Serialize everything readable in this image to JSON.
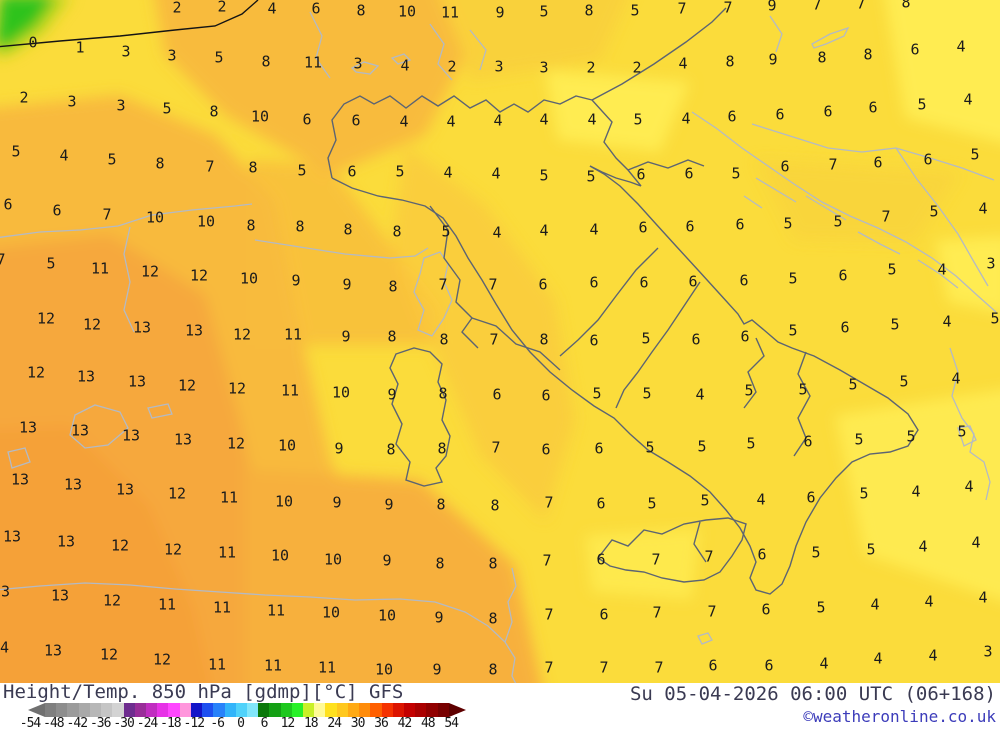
{
  "legend": {
    "title": "Height/Temp. 850 hPa [gdmp][°C] GFS",
    "datetime": "Su 05-04-2026 06:00 UTC (06+168)",
    "copyright": "©weatheronline.co.uk",
    "ticks": [
      "-54",
      "-48",
      "-42",
      "-36",
      "-30",
      "-24",
      "-18",
      "-12",
      "-6",
      "0",
      "6",
      "12",
      "18",
      "24",
      "30",
      "36",
      "42",
      "48",
      "54"
    ],
    "colorbar_colors": [
      "#7f7f7f",
      "#8d8d8d",
      "#9b9b9b",
      "#a9a9a9",
      "#b7b7b7",
      "#c5c5c5",
      "#d3d3d3",
      "#6e2d8f",
      "#992d99",
      "#c02dc0",
      "#e632e6",
      "#ff46ff",
      "#ff96dc",
      "#1414c8",
      "#1e50f0",
      "#2882fa",
      "#32b4fa",
      "#50d2fa",
      "#82e6fa",
      "#0a780a",
      "#14a014",
      "#1ec81e",
      "#28f028",
      "#c8f028",
      "#fffa96",
      "#ffe11e",
      "#ffc81e",
      "#ffaa14",
      "#ff8c0a",
      "#ff5f00",
      "#f53200",
      "#dc1400",
      "#c30000",
      "#aa0000",
      "#910000",
      "#780000"
    ],
    "arrow_left_color": "#707070",
    "arrow_right_color": "#5e0000"
  },
  "map": {
    "palette": {
      "base_yellow": "#fbdc3b",
      "bright_yellow": "#ffee55",
      "amber": "#f8ba3d",
      "orange": "#f6a83c",
      "deep_orange": "#f5a039",
      "green": "#2fc31e",
      "chartreuse": "#c3d81f",
      "coast_dark": "#5c6472",
      "coast_light": "#b4bac4",
      "border_black": "#141414"
    },
    "numbers": [
      [
        "2",
        177,
        8
      ],
      [
        "2",
        222,
        7
      ],
      [
        "4",
        272,
        9
      ],
      [
        "6",
        316,
        9
      ],
      [
        "8",
        361,
        11
      ],
      [
        "10",
        407,
        12
      ],
      [
        "11",
        450,
        13
      ],
      [
        "9",
        500,
        13
      ],
      [
        "5",
        544,
        12
      ],
      [
        "8",
        589,
        11
      ],
      [
        "5",
        635,
        11
      ],
      [
        "7",
        682,
        9
      ],
      [
        "7",
        728,
        8
      ],
      [
        "9",
        772,
        6
      ],
      [
        "7",
        817,
        5
      ],
      [
        "7",
        861,
        4
      ],
      [
        "8",
        906,
        3
      ],
      [
        "0",
        33,
        43
      ],
      [
        "1",
        80,
        48
      ],
      [
        "3",
        126,
        52
      ],
      [
        "3",
        172,
        56
      ],
      [
        "5",
        219,
        58
      ],
      [
        "8",
        266,
        62
      ],
      [
        "11",
        313,
        63
      ],
      [
        "3",
        358,
        64
      ],
      [
        "4",
        405,
        66
      ],
      [
        "2",
        452,
        67
      ],
      [
        "3",
        499,
        67
      ],
      [
        "3",
        544,
        68
      ],
      [
        "2",
        591,
        68
      ],
      [
        "2",
        637,
        68
      ],
      [
        "4",
        683,
        64
      ],
      [
        "8",
        730,
        62
      ],
      [
        "9",
        773,
        60
      ],
      [
        "8",
        822,
        58
      ],
      [
        "8",
        868,
        55
      ],
      [
        "6",
        915,
        50
      ],
      [
        "4",
        961,
        47
      ],
      [
        "2",
        24,
        98
      ],
      [
        "3",
        72,
        102
      ],
      [
        "3",
        121,
        106
      ],
      [
        "5",
        167,
        109
      ],
      [
        "8",
        214,
        112
      ],
      [
        "10",
        260,
        117
      ],
      [
        "6",
        307,
        120
      ],
      [
        "6",
        356,
        121
      ],
      [
        "4",
        404,
        122
      ],
      [
        "4",
        451,
        122
      ],
      [
        "4",
        498,
        121
      ],
      [
        "4",
        544,
        120
      ],
      [
        "4",
        592,
        120
      ],
      [
        "5",
        638,
        120
      ],
      [
        "4",
        686,
        119
      ],
      [
        "6",
        732,
        117
      ],
      [
        "6",
        780,
        115
      ],
      [
        "6",
        828,
        112
      ],
      [
        "6",
        873,
        108
      ],
      [
        "5",
        922,
        105
      ],
      [
        "4",
        968,
        100
      ],
      [
        "5",
        16,
        152
      ],
      [
        "4",
        64,
        156
      ],
      [
        "5",
        112,
        160
      ],
      [
        "8",
        160,
        164
      ],
      [
        "7",
        210,
        167
      ],
      [
        "8",
        253,
        168
      ],
      [
        "5",
        302,
        171
      ],
      [
        "6",
        352,
        172
      ],
      [
        "5",
        400,
        172
      ],
      [
        "4",
        448,
        173
      ],
      [
        "4",
        496,
        174
      ],
      [
        "5",
        544,
        176
      ],
      [
        "5",
        591,
        177
      ],
      [
        "6",
        641,
        175
      ],
      [
        "6",
        689,
        174
      ],
      [
        "5",
        736,
        174
      ],
      [
        "6",
        785,
        167
      ],
      [
        "7",
        833,
        165
      ],
      [
        "6",
        878,
        163
      ],
      [
        "6",
        928,
        160
      ],
      [
        "5",
        975,
        155
      ],
      [
        "6",
        8,
        205
      ],
      [
        "6",
        57,
        211
      ],
      [
        "7",
        107,
        215
      ],
      [
        "10",
        155,
        218
      ],
      [
        "10",
        206,
        222
      ],
      [
        "8",
        251,
        226
      ],
      [
        "8",
        300,
        227
      ],
      [
        "8",
        348,
        230
      ],
      [
        "8",
        397,
        232
      ],
      [
        "5",
        446,
        232
      ],
      [
        "4",
        497,
        233
      ],
      [
        "4",
        544,
        231
      ],
      [
        "4",
        594,
        230
      ],
      [
        "6",
        643,
        228
      ],
      [
        "6",
        690,
        227
      ],
      [
        "6",
        740,
        225
      ],
      [
        "5",
        788,
        224
      ],
      [
        "5",
        838,
        222
      ],
      [
        "7",
        886,
        217
      ],
      [
        "5",
        934,
        212
      ],
      [
        "4",
        983,
        209
      ],
      [
        "7",
        1,
        260
      ],
      [
        "5",
        51,
        264
      ],
      [
        "11",
        100,
        269
      ],
      [
        "12",
        150,
        272
      ],
      [
        "12",
        199,
        276
      ],
      [
        "10",
        249,
        279
      ],
      [
        "9",
        296,
        281
      ],
      [
        "9",
        347,
        285
      ],
      [
        "8",
        393,
        287
      ],
      [
        "7",
        443,
        285
      ],
      [
        "7",
        493,
        285
      ],
      [
        "6",
        543,
        285
      ],
      [
        "6",
        594,
        283
      ],
      [
        "6",
        644,
        283
      ],
      [
        "6",
        693,
        282
      ],
      [
        "6",
        744,
        281
      ],
      [
        "5",
        793,
        279
      ],
      [
        "6",
        843,
        276
      ],
      [
        "5",
        892,
        270
      ],
      [
        "4",
        942,
        270
      ],
      [
        "3",
        991,
        264
      ],
      [
        "12",
        46,
        319
      ],
      [
        "12",
        92,
        325
      ],
      [
        "13",
        142,
        328
      ],
      [
        "13",
        194,
        331
      ],
      [
        "12",
        242,
        335
      ],
      [
        "11",
        293,
        335
      ],
      [
        "9",
        346,
        337
      ],
      [
        "8",
        392,
        337
      ],
      [
        "8",
        444,
        340
      ],
      [
        "7",
        494,
        340
      ],
      [
        "8",
        544,
        340
      ],
      [
        "6",
        594,
        341
      ],
      [
        "5",
        646,
        339
      ],
      [
        "6",
        696,
        340
      ],
      [
        "6",
        745,
        337
      ],
      [
        "5",
        793,
        331
      ],
      [
        "6",
        845,
        328
      ],
      [
        "5",
        895,
        325
      ],
      [
        "4",
        947,
        322
      ],
      [
        "5",
        995,
        319
      ],
      [
        "12",
        36,
        373
      ],
      [
        "13",
        86,
        377
      ],
      [
        "13",
        137,
        382
      ],
      [
        "12",
        187,
        386
      ],
      [
        "12",
        237,
        389
      ],
      [
        "11",
        290,
        391
      ],
      [
        "10",
        341,
        393
      ],
      [
        "9",
        392,
        395
      ],
      [
        "8",
        443,
        394
      ],
      [
        "6",
        497,
        395
      ],
      [
        "6",
        546,
        396
      ],
      [
        "5",
        597,
        394
      ],
      [
        "5",
        647,
        394
      ],
      [
        "4",
        700,
        395
      ],
      [
        "5",
        749,
        391
      ],
      [
        "5",
        803,
        390
      ],
      [
        "5",
        853,
        385
      ],
      [
        "5",
        904,
        382
      ],
      [
        "4",
        956,
        379
      ],
      [
        "13",
        28,
        428
      ],
      [
        "13",
        80,
        431
      ],
      [
        "13",
        131,
        436
      ],
      [
        "13",
        183,
        440
      ],
      [
        "12",
        236,
        444
      ],
      [
        "10",
        287,
        446
      ],
      [
        "9",
        339,
        449
      ],
      [
        "8",
        391,
        450
      ],
      [
        "8",
        442,
        449
      ],
      [
        "7",
        496,
        448
      ],
      [
        "6",
        546,
        450
      ],
      [
        "6",
        599,
        449
      ],
      [
        "5",
        650,
        448
      ],
      [
        "5",
        702,
        447
      ],
      [
        "5",
        751,
        444
      ],
      [
        "6",
        808,
        442
      ],
      [
        "5",
        859,
        440
      ],
      [
        "5",
        911,
        437
      ],
      [
        "5",
        962,
        432
      ],
      [
        "13",
        20,
        480
      ],
      [
        "13",
        73,
        485
      ],
      [
        "13",
        125,
        490
      ],
      [
        "12",
        177,
        494
      ],
      [
        "11",
        229,
        498
      ],
      [
        "10",
        284,
        502
      ],
      [
        "9",
        337,
        503
      ],
      [
        "9",
        389,
        505
      ],
      [
        "8",
        441,
        505
      ],
      [
        "8",
        495,
        506
      ],
      [
        "7",
        549,
        503
      ],
      [
        "6",
        601,
        504
      ],
      [
        "5",
        652,
        504
      ],
      [
        "5",
        705,
        501
      ],
      [
        "4",
        761,
        500
      ],
      [
        "6",
        811,
        498
      ],
      [
        "5",
        864,
        494
      ],
      [
        "4",
        916,
        492
      ],
      [
        "4",
        969,
        487
      ],
      [
        "13",
        12,
        537
      ],
      [
        "13",
        66,
        542
      ],
      [
        "12",
        120,
        546
      ],
      [
        "12",
        173,
        550
      ],
      [
        "11",
        227,
        553
      ],
      [
        "10",
        280,
        556
      ],
      [
        "10",
        333,
        560
      ],
      [
        "9",
        387,
        561
      ],
      [
        "8",
        440,
        564
      ],
      [
        "8",
        493,
        564
      ],
      [
        "7",
        547,
        561
      ],
      [
        "6",
        601,
        560
      ],
      [
        "7",
        656,
        560
      ],
      [
        "7",
        709,
        557
      ],
      [
        "6",
        762,
        555
      ],
      [
        "5",
        816,
        553
      ],
      [
        "5",
        871,
        550
      ],
      [
        "4",
        923,
        547
      ],
      [
        "4",
        976,
        543
      ],
      [
        "13",
        1,
        592
      ],
      [
        "13",
        60,
        596
      ],
      [
        "12",
        112,
        601
      ],
      [
        "11",
        167,
        605
      ],
      [
        "11",
        222,
        608
      ],
      [
        "11",
        276,
        611
      ],
      [
        "10",
        331,
        613
      ],
      [
        "10",
        387,
        616
      ],
      [
        "9",
        439,
        618
      ],
      [
        "8",
        493,
        619
      ],
      [
        "7",
        549,
        615
      ],
      [
        "6",
        604,
        615
      ],
      [
        "7",
        657,
        613
      ],
      [
        "7",
        712,
        612
      ],
      [
        "6",
        766,
        610
      ],
      [
        "5",
        821,
        608
      ],
      [
        "4",
        875,
        605
      ],
      [
        "4",
        929,
        602
      ],
      [
        "4",
        983,
        598
      ],
      [
        "14",
        0,
        648
      ],
      [
        "13",
        53,
        651
      ],
      [
        "12",
        109,
        655
      ],
      [
        "12",
        162,
        660
      ],
      [
        "11",
        217,
        665
      ],
      [
        "11",
        273,
        666
      ],
      [
        "11",
        327,
        668
      ],
      [
        "10",
        384,
        670
      ],
      [
        "9",
        437,
        670
      ],
      [
        "8",
        493,
        670
      ],
      [
        "7",
        549,
        668
      ],
      [
        "7",
        604,
        668
      ],
      [
        "7",
        659,
        668
      ],
      [
        "6",
        713,
        666
      ],
      [
        "6",
        769,
        666
      ],
      [
        "4",
        824,
        664
      ],
      [
        "4",
        878,
        659
      ],
      [
        "4",
        933,
        656
      ],
      [
        "3",
        988,
        652
      ]
    ]
  }
}
